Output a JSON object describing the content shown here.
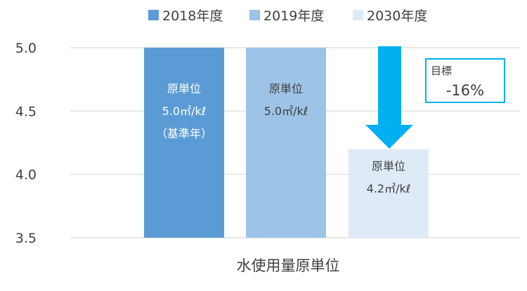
{
  "chart_data": {
    "type": "bar",
    "categories": [
      "水使用量原単位"
    ],
    "xlabel": "水使用量原単位",
    "ylim": [
      3.5,
      5.0
    ],
    "yticks": [
      3.5,
      4.0,
      4.5,
      5.0
    ],
    "ytick_labels": [
      "3.5",
      "4.0",
      "4.5",
      "5.0"
    ],
    "grid": true,
    "legend_position": "top",
    "series": [
      {
        "name": "2018年度",
        "value": 5.0,
        "color": "#5B9BD5",
        "label_color": "#ffffff",
        "labels": [
          "原単位",
          "5.0㎡/kℓ",
          "（基準年）"
        ]
      },
      {
        "name": "2019年度",
        "value": 5.0,
        "color": "#9DC3E6",
        "label_color": "#404040",
        "labels": [
          "原単位",
          "5.0㎡/kℓ"
        ]
      },
      {
        "name": "2030年度",
        "value": 4.2,
        "color": "#DEEBF7",
        "label_color": "#404040",
        "labels": [
          "原単位",
          "4.2㎡/kℓ"
        ]
      }
    ],
    "annotation": {
      "arrow_color": "#00B0F0",
      "box_border_color": "#00B0F0",
      "title": "目標",
      "value": "-16%"
    }
  }
}
